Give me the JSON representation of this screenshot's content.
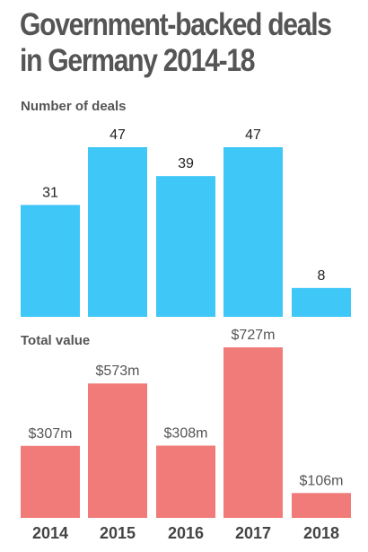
{
  "title_lines": [
    "Government-backed deals",
    "in Germany 2014-18"
  ],
  "colors": {
    "deals": "#3ec7f7",
    "value": "#f07b78"
  },
  "chart_data": [
    {
      "type": "bar",
      "title": "Number of deals",
      "categories": [
        "2014",
        "2015",
        "2016",
        "2017",
        "2018"
      ],
      "values": [
        31,
        47,
        39,
        47,
        8
      ],
      "labels": [
        "31",
        "47",
        "39",
        "47",
        "8"
      ],
      "ylim": [
        0,
        47
      ],
      "grid": false
    },
    {
      "type": "bar",
      "title": "Total value",
      "categories": [
        "2014",
        "2015",
        "2016",
        "2017",
        "2018"
      ],
      "values": [
        307,
        573,
        308,
        727,
        106
      ],
      "labels": [
        "$307m",
        "$573m",
        "$308m",
        "$727m",
        "$106m"
      ],
      "ylim": [
        0,
        727
      ],
      "grid": false
    }
  ]
}
